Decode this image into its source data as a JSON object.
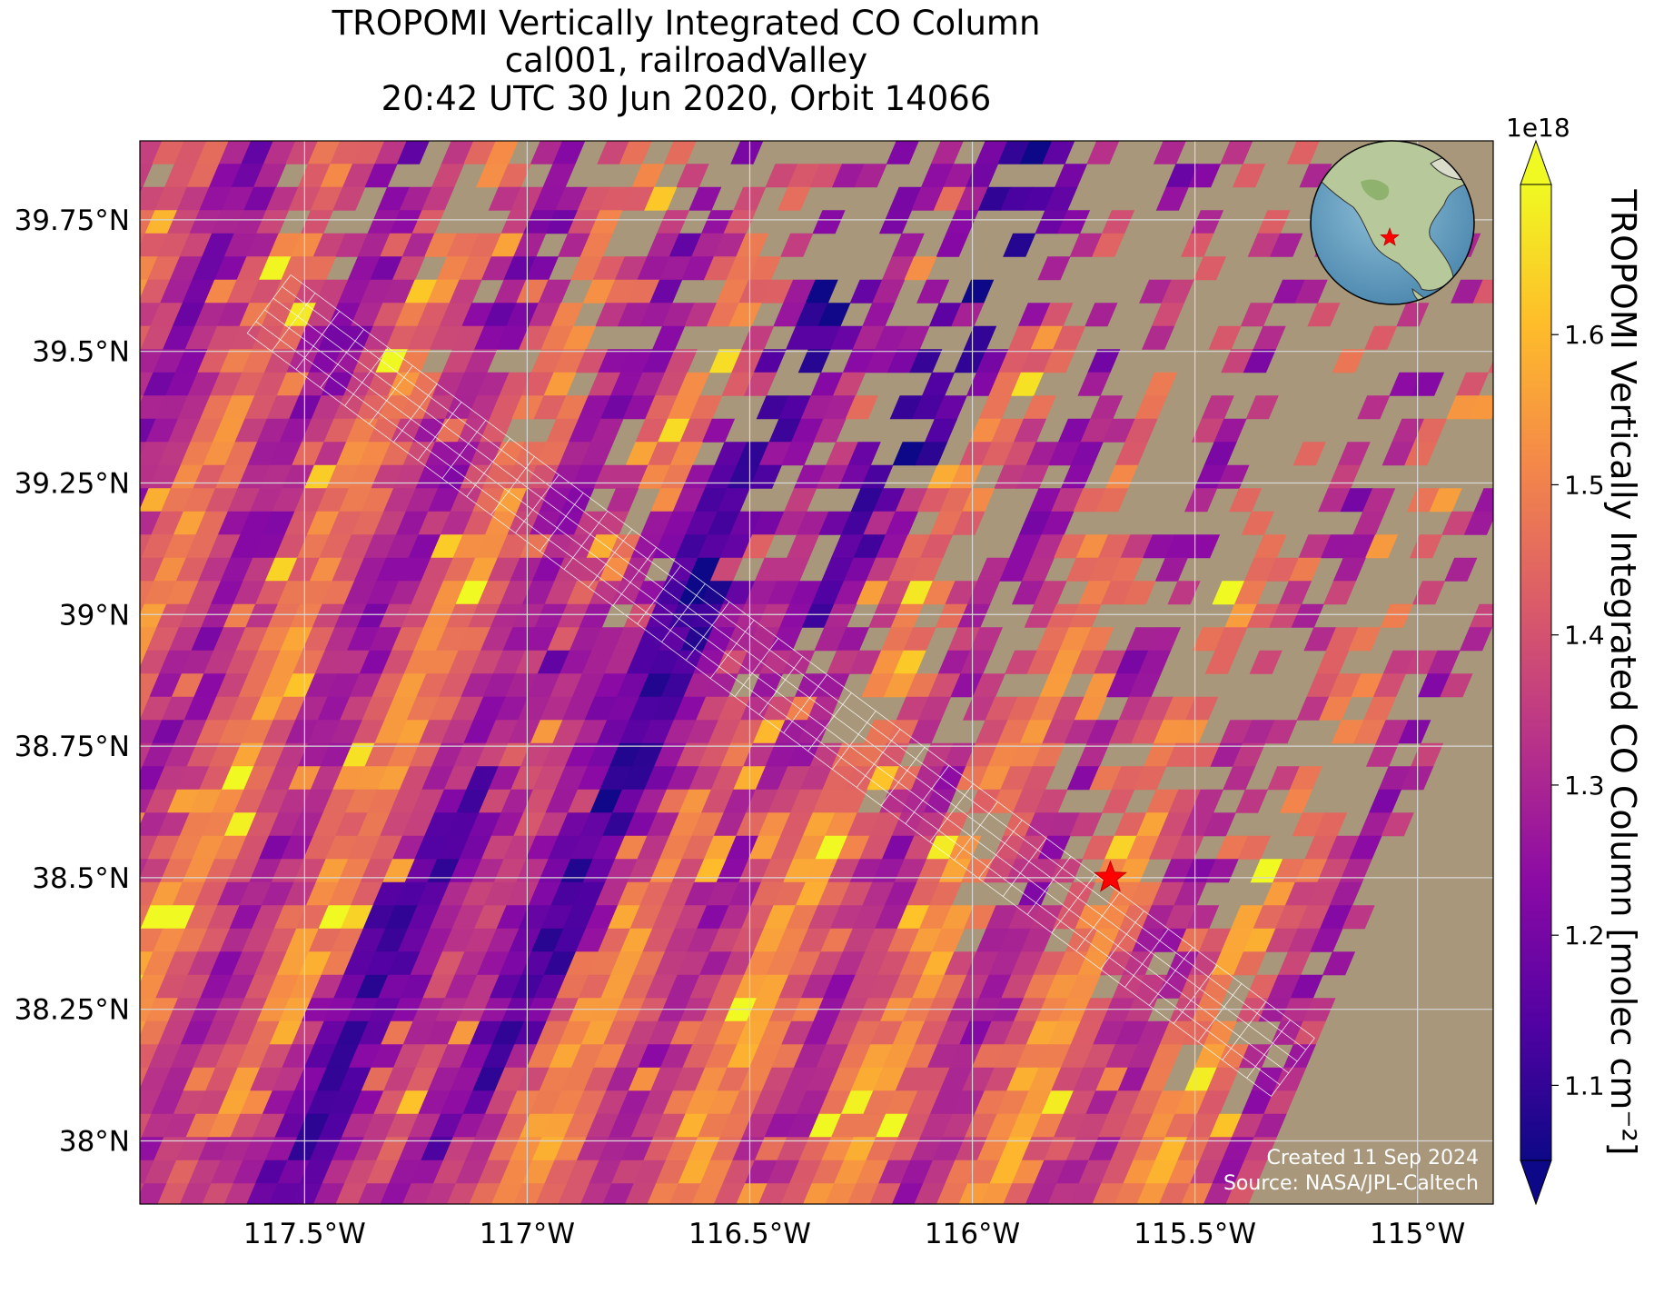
{
  "title": {
    "line1": "TROPOMI Vertically Integrated CO Column",
    "line2": "cal001, railroadValley",
    "line3": "20:42 UTC 30 Jun 2020, Orbit 14066"
  },
  "map": {
    "lon_range": [
      -117.87,
      -114.83
    ],
    "lat_range": [
      37.88,
      39.9
    ],
    "lon_ticks": [
      {
        "value": -117.5,
        "label": "117.5°W"
      },
      {
        "value": -117.0,
        "label": "117°W"
      },
      {
        "value": -116.5,
        "label": "116.5°W"
      },
      {
        "value": -116.0,
        "label": "116°W"
      },
      {
        "value": -115.5,
        "label": "115.5°W"
      },
      {
        "value": -115.0,
        "label": "115°W"
      }
    ],
    "lat_ticks": [
      {
        "value": 39.75,
        "label": "39.75°N"
      },
      {
        "value": 39.5,
        "label": "39.5°N"
      },
      {
        "value": 39.25,
        "label": "39.25°N"
      },
      {
        "value": 39.0,
        "label": "39°N"
      },
      {
        "value": 38.75,
        "label": "38.75°N"
      },
      {
        "value": 38.5,
        "label": "38.5°N"
      },
      {
        "value": 38.25,
        "label": "38.25°N"
      },
      {
        "value": 38.0,
        "label": "38°N"
      }
    ],
    "site_marker": {
      "lon": -115.69,
      "lat": 38.5,
      "icon": "red-star-icon",
      "color": "#ff0000"
    },
    "gridlines": true,
    "inset_globe": {
      "position": "top-right",
      "icon": "globe-icon"
    }
  },
  "colorbar": {
    "title": "TROPOMI Vertically Integrated CO Column [molec cm⁻²]",
    "scale_label": "1e18",
    "range": [
      1.05,
      1.7
    ],
    "ticks": [
      {
        "value": 1.1,
        "label": "1.1"
      },
      {
        "value": 1.2,
        "label": "1.2"
      },
      {
        "value": 1.3,
        "label": "1.3"
      },
      {
        "value": 1.4,
        "label": "1.4"
      },
      {
        "value": 1.5,
        "label": "1.5"
      },
      {
        "value": 1.6,
        "label": "1.6"
      }
    ],
    "colormap": "plasma",
    "extend": "both",
    "colors": [
      "#0d0887",
      "#5302a3",
      "#8b0aa5",
      "#b83289",
      "#db5c68",
      "#f48849",
      "#febd2a",
      "#f0f921"
    ]
  },
  "credits": {
    "line1": "Created 11 Sep 2024",
    "line2": "Source: NASA/JPL-Caltech"
  }
}
